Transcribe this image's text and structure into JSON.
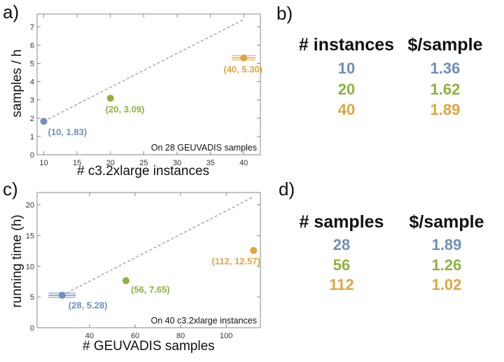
{
  "panels": {
    "a": "a)",
    "b": "b)",
    "c": "c)",
    "d": "d)"
  },
  "colors": {
    "blue": "#6f8fbe",
    "green": "#8db33e",
    "orange": "#e3a43c",
    "trend": "#9a9a9a"
  },
  "chart_data": [
    {
      "type": "scatter",
      "xlabel": "# c3.2xlarge instances",
      "ylabel": "samples / h",
      "annotation": "On 28 GEUVADIS samples",
      "xlim": [
        9,
        42.5
      ],
      "ylim": [
        0,
        7.7
      ],
      "xticks": [
        10,
        15,
        20,
        25,
        30,
        35,
        40
      ],
      "yticks": [
        0,
        1,
        2,
        3,
        4,
        5,
        6,
        7
      ],
      "trend": {
        "x": [
          10,
          40
        ],
        "y": [
          1.83,
          7.4
        ]
      },
      "points": [
        {
          "x": 10,
          "y": 1.83,
          "label": "(10, 1.83)",
          "color": "#6f8fbe",
          "err": 0
        },
        {
          "x": 20,
          "y": 3.09,
          "label": "(20, 3.09)",
          "color": "#8db33e",
          "err": 0
        },
        {
          "x": 40,
          "y": 5.3,
          "label": "(40, 5.30)",
          "color": "#e3a43c",
          "err": 1.8
        }
      ]
    },
    {
      "type": "scatter",
      "xlabel": "# GEUVADIS samples",
      "ylabel": "running time (h)",
      "annotation": "On 40 c3.2xlarge instances",
      "xlim": [
        17,
        115
      ],
      "ylim": [
        0,
        22
      ],
      "xticks": [
        40,
        60,
        80,
        100
      ],
      "yticks": [
        0,
        5,
        10,
        15,
        20
      ],
      "trend": {
        "x": [
          28,
          112
        ],
        "y": [
          5.28,
          21.3
        ]
      },
      "points": [
        {
          "x": 28,
          "y": 5.28,
          "label": "(28, 5.28)",
          "color": "#6f8fbe",
          "err": 6
        },
        {
          "x": 56,
          "y": 7.65,
          "label": "(56, 7.65)",
          "color": "#8db33e",
          "err": 0
        },
        {
          "x": 112,
          "y": 12.57,
          "label": "(112, 12.57)",
          "color": "#e3a43c",
          "err": 0
        }
      ]
    }
  ],
  "table_b": {
    "headers": [
      "# instances",
      "$/sample"
    ],
    "rows": [
      {
        "a": "10",
        "b": "1.36",
        "color": "#6f8fbe"
      },
      {
        "a": "20",
        "b": "1.62",
        "color": "#8db33e"
      },
      {
        "a": "40",
        "b": "1.89",
        "color": "#e3a43c"
      }
    ]
  },
  "table_d": {
    "headers": [
      "# samples",
      "$/sample"
    ],
    "rows": [
      {
        "a": "28",
        "b": "1.89",
        "color": "#6f8fbe"
      },
      {
        "a": "56",
        "b": "1.26",
        "color": "#8db33e"
      },
      {
        "a": "112",
        "b": "1.02",
        "color": "#e3a43c"
      }
    ]
  }
}
